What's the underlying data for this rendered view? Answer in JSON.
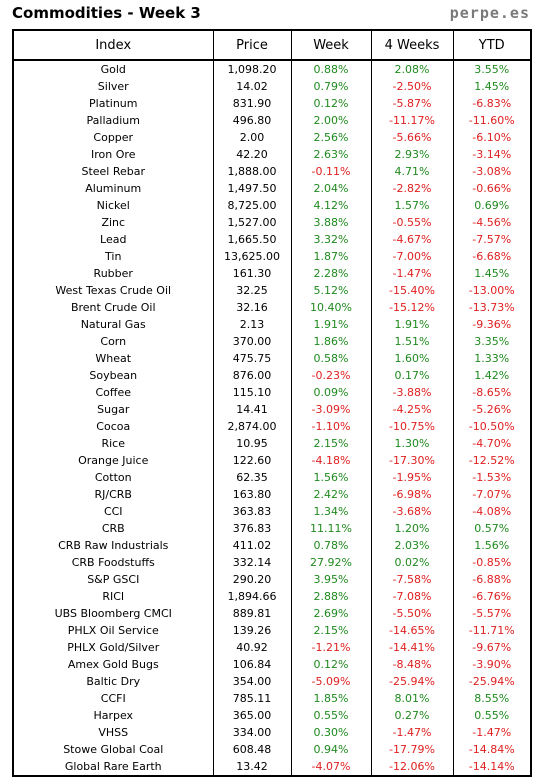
{
  "header": {
    "title": "Commodities - Week 3",
    "brand": "perpe.es"
  },
  "table": {
    "columns": [
      "Index",
      "Price",
      "Week",
      "4 Weeks",
      "YTD"
    ],
    "rows": [
      [
        "Gold",
        "1,098.20",
        "0.88%",
        "2.08%",
        "3.55%"
      ],
      [
        "Silver",
        "14.02",
        "0.79%",
        "-2.50%",
        "1.45%"
      ],
      [
        "Platinum",
        "831.90",
        "0.12%",
        "-5.87%",
        "-6.83%"
      ],
      [
        "Palladium",
        "496.80",
        "2.00%",
        "-11.17%",
        "-11.60%"
      ],
      [
        "Copper",
        "2.00",
        "2.56%",
        "-5.66%",
        "-6.10%"
      ],
      [
        "Iron Ore",
        "42.20",
        "2.63%",
        "2.93%",
        "-3.14%"
      ],
      [
        "Steel Rebar",
        "1,888.00",
        "-0.11%",
        "4.71%",
        "-3.08%"
      ],
      [
        "Aluminum",
        "1,497.50",
        "2.04%",
        "-2.82%",
        "-0.66%"
      ],
      [
        "Nickel",
        "8,725.00",
        "4.12%",
        "1.57%",
        "0.69%"
      ],
      [
        "Zinc",
        "1,527.00",
        "3.88%",
        "-0.55%",
        "-4.56%"
      ],
      [
        "Lead",
        "1,665.50",
        "3.32%",
        "-4.67%",
        "-7.57%"
      ],
      [
        "Tin",
        "13,625.00",
        "1.87%",
        "-7.00%",
        "-6.68%"
      ],
      [
        "Rubber",
        "161.30",
        "2.28%",
        "-1.47%",
        "1.45%"
      ],
      [
        "West Texas Crude Oil",
        "32.25",
        "5.12%",
        "-15.40%",
        "-13.00%"
      ],
      [
        "Brent Crude Oil",
        "32.16",
        "10.40%",
        "-15.12%",
        "-13.73%"
      ],
      [
        "Natural Gas",
        "2.13",
        "1.91%",
        "1.91%",
        "-9.36%"
      ],
      [
        "Corn",
        "370.00",
        "1.86%",
        "1.51%",
        "3.35%"
      ],
      [
        "Wheat",
        "475.75",
        "0.58%",
        "1.60%",
        "1.33%"
      ],
      [
        "Soybean",
        "876.00",
        "-0.23%",
        "0.17%",
        "1.42%"
      ],
      [
        "Coffee",
        "115.10",
        "0.09%",
        "-3.88%",
        "-8.65%"
      ],
      [
        "Sugar",
        "14.41",
        "-3.09%",
        "-4.25%",
        "-5.26%"
      ],
      [
        "Cocoa",
        "2,874.00",
        "-1.10%",
        "-10.75%",
        "-10.50%"
      ],
      [
        "Rice",
        "10.95",
        "2.15%",
        "1.30%",
        "-4.70%"
      ],
      [
        "Orange Juice",
        "122.60",
        "-4.18%",
        "-17.30%",
        "-12.52%"
      ],
      [
        "Cotton",
        "62.35",
        "1.56%",
        "-1.95%",
        "-1.53%"
      ],
      [
        "RJ/CRB",
        "163.80",
        "2.42%",
        "-6.98%",
        "-7.07%"
      ],
      [
        "CCI",
        "363.83",
        "1.34%",
        "-3.68%",
        "-4.08%"
      ],
      [
        "CRB",
        "376.83",
        "11.11%",
        "1.20%",
        "0.57%"
      ],
      [
        "CRB Raw Industrials",
        "411.02",
        "0.78%",
        "2.03%",
        "1.56%"
      ],
      [
        "CRB Foodstuffs",
        "332.14",
        "27.92%",
        "0.02%",
        "-0.85%"
      ],
      [
        "S&P GSCI",
        "290.20",
        "3.95%",
        "-7.58%",
        "-6.88%"
      ],
      [
        "RICI",
        "1,894.66",
        "2.88%",
        "-7.08%",
        "-6.76%"
      ],
      [
        "UBS Bloomberg CMCI",
        "889.81",
        "2.69%",
        "-5.50%",
        "-5.57%"
      ],
      [
        "PHLX Oil Service",
        "139.26",
        "2.15%",
        "-14.65%",
        "-11.71%"
      ],
      [
        "PHLX Gold/Silver",
        "40.92",
        "-1.21%",
        "-14.41%",
        "-9.67%"
      ],
      [
        "Amex Gold Bugs",
        "106.84",
        "0.12%",
        "-8.48%",
        "-3.90%"
      ],
      [
        "Baltic Dry",
        "354.00",
        "-5.09%",
        "-25.94%",
        "-25.94%"
      ],
      [
        "CCFI",
        "785.11",
        "1.85%",
        "8.01%",
        "8.55%"
      ],
      [
        "Harpex",
        "365.00",
        "0.55%",
        "0.27%",
        "0.55%"
      ],
      [
        "VHSS",
        "334.00",
        "0.30%",
        "-1.47%",
        "-1.47%"
      ],
      [
        "Stowe Global Coal",
        "608.48",
        "0.94%",
        "-17.79%",
        "-14.84%"
      ],
      [
        "Global Rare Earth",
        "13.42",
        "-4.07%",
        "-12.06%",
        "-14.14%"
      ]
    ]
  },
  "colors": {
    "positive": "#1f8a1f",
    "negative": "#e02020",
    "brand": "#7a7a7a"
  }
}
